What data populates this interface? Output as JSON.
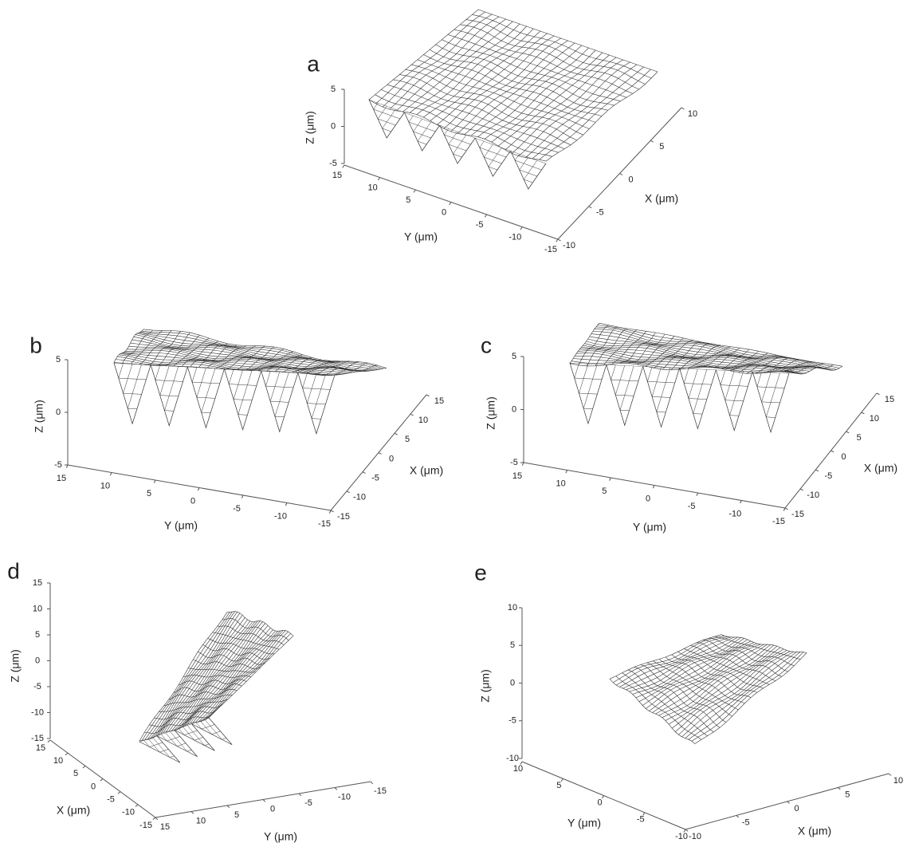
{
  "chart_data": [
    {
      "type": "surface3d",
      "panel_label": "a",
      "zlabel": "Z (μm)",
      "ylabel": "Y (μm)",
      "xlabel": "X (μm)",
      "zlim": [
        -5,
        5
      ],
      "zticks": [
        -5,
        0,
        5
      ],
      "ylim": [
        -15,
        15
      ],
      "yticks": [
        -15,
        -10,
        -5,
        0,
        5,
        10,
        15
      ],
      "xlim": [
        -10,
        10
      ],
      "xticks": [
        -10,
        -5,
        0,
        5,
        10
      ]
    },
    {
      "type": "surface3d",
      "panel_label": "b",
      "zlabel": "Z (μm)",
      "ylabel": "Y (μm)",
      "xlabel": "X (μm)",
      "zlim": [
        -5,
        5
      ],
      "zticks": [
        -5,
        0,
        5
      ],
      "ylim": [
        -15,
        15
      ],
      "yticks": [
        -15,
        -10,
        -5,
        0,
        5,
        10,
        15
      ],
      "xlim": [
        -15,
        15
      ],
      "xticks": [
        -15,
        -10,
        -5,
        0,
        5,
        10,
        15
      ]
    },
    {
      "type": "surface3d",
      "panel_label": "c",
      "zlabel": "Z (μm)",
      "ylabel": "Y (μm)",
      "xlabel": "X (μm)",
      "zlim": [
        -5,
        5
      ],
      "zticks": [
        -5,
        0,
        5
      ],
      "ylim": [
        -15,
        15
      ],
      "yticks": [
        -15,
        -10,
        -5,
        0,
        5,
        10,
        15
      ],
      "xlim": [
        -15,
        15
      ],
      "xticks": [
        -15,
        -10,
        -5,
        0,
        5,
        10,
        15
      ]
    },
    {
      "type": "surface3d",
      "panel_label": "d",
      "zlabel": "Z (μm)",
      "ylabel": "Y (μm)",
      "xlabel": "X (μm)",
      "zlim": [
        -15,
        15
      ],
      "zticks": [
        -15,
        -10,
        -5,
        0,
        5,
        10,
        15
      ],
      "ylim": [
        -15,
        15
      ],
      "yticks": [
        -15,
        -10,
        -5,
        0,
        5,
        10,
        15
      ],
      "xlim": [
        -15,
        15
      ],
      "xticks": [
        -15,
        -10,
        -5,
        0,
        5,
        10,
        15
      ]
    },
    {
      "type": "surface3d",
      "panel_label": "e",
      "zlabel": "Z (μm)",
      "ylabel": "Y (μm)",
      "xlabel": "X (μm)",
      "zlim": [
        -10,
        10
      ],
      "zticks": [
        -10,
        -5,
        0,
        5,
        10
      ],
      "ylim": [
        -10,
        10
      ],
      "yticks": [
        -10,
        -5,
        0,
        5,
        10
      ],
      "xlim": [
        -10,
        10
      ],
      "xticks": [
        -10,
        -5,
        0,
        5,
        10
      ]
    }
  ]
}
